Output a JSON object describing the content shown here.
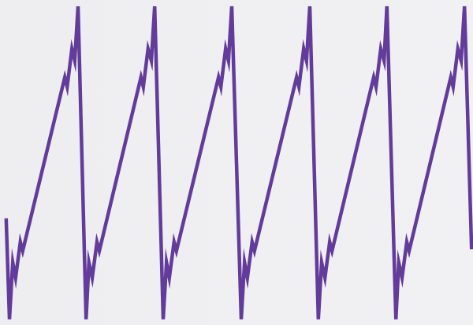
{
  "chart_data": {
    "type": "line",
    "xlim": [
      0,
      100
    ],
    "ylim": [
      0,
      103
    ],
    "series": [
      {
        "color": "#633b9b",
        "x": [
          1.3,
          2,
          2.7,
          3.3,
          4.3,
          4.8,
          13.7,
          14.2,
          15.2,
          15.8,
          16.5,
          18.2,
          18.8,
          19.5,
          20.5,
          21,
          29.8,
          30.3,
          31.3,
          32,
          32.7,
          34.5,
          35.2,
          35.8,
          36.8,
          37.3,
          46.2,
          46.7,
          47.7,
          48.3,
          49,
          51,
          51.7,
          52.3,
          53.3,
          53.8,
          62.7,
          63.2,
          64.2,
          64.8,
          65.5,
          67.3,
          68,
          68.7,
          69.7,
          70.2,
          79,
          79.5,
          80.5,
          81.2,
          81.8,
          83.7,
          84.3,
          85,
          86,
          86.5,
          95.3,
          95.8,
          96.8,
          97.5,
          98.2,
          99.7
        ],
        "values": [
          33.8,
          1.8,
          19.8,
          15,
          26.3,
          23.5,
          78.5,
          75.5,
          87.5,
          83.8,
          101,
          1.8,
          19.8,
          15,
          26.3,
          23.5,
          78.5,
          75.5,
          87.5,
          83.8,
          101,
          1.8,
          19.8,
          15,
          26.3,
          23.5,
          78.5,
          75.5,
          87.5,
          83.8,
          101,
          1.8,
          19.8,
          15,
          26.3,
          23.5,
          78.5,
          75.5,
          87.5,
          83.8,
          101,
          1.8,
          19.8,
          15,
          26.3,
          23.5,
          78.5,
          75.5,
          87.5,
          83.8,
          101,
          1.8,
          19.8,
          15,
          26.3,
          23.5,
          78.5,
          75.5,
          87.5,
          83.8,
          101,
          24
        ]
      }
    ]
  }
}
